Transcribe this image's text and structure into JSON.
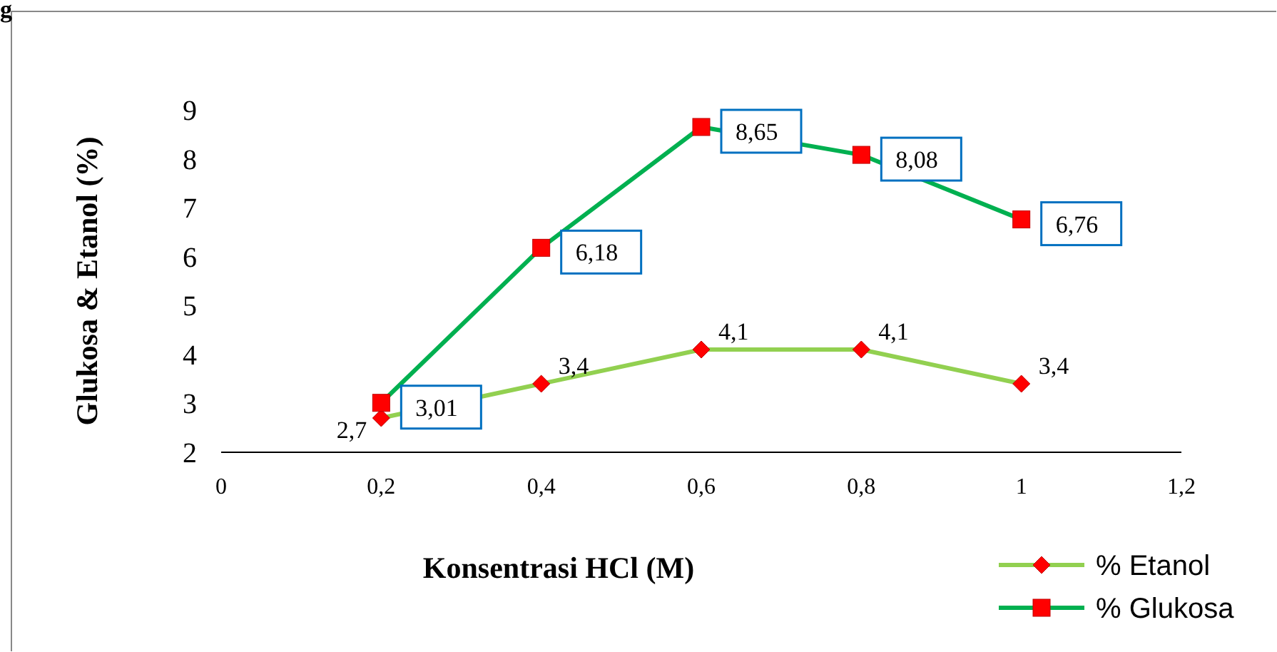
{
  "chart_data": {
    "type": "line",
    "xlabel": "Konsentrasi HCl (M)",
    "ylabel": "Glukosa & Etanol (%)",
    "annotations": [
      "g"
    ],
    "x": [
      0.2,
      0.4,
      0.6,
      0.8,
      1
    ],
    "xlim": [
      0,
      1.2
    ],
    "xticks": [
      0,
      {
        "value": 0.2,
        "label": "0,2"
      },
      {
        "value": 0.4,
        "label": "0,4"
      },
      {
        "value": 0.6,
        "label": "0,6"
      },
      {
        "value": 0.8,
        "label": "0,8"
      },
      1,
      {
        "value": 1.2,
        "label": "1,2"
      }
    ],
    "ylim": [
      2,
      9
    ],
    "yticks": [
      2,
      3,
      4,
      5,
      6,
      7,
      8,
      9
    ],
    "grid": false,
    "legend": "bottom right",
    "series": [
      {
        "name": "% Etanol",
        "color": "#92d050",
        "marker": "diamond",
        "values": [
          2.7,
          3.4,
          4.1,
          4.1,
          3.4
        ],
        "value_labels": [
          "2,7",
          "3,4",
          "4,1",
          "4,1",
          "3,4"
        ]
      },
      {
        "name": "% Glukosa",
        "color": "#00b050",
        "marker": "square",
        "values": [
          3.01,
          6.18,
          8.65,
          8.08,
          6.76
        ],
        "value_labels": [
          "3,01",
          "6,18",
          "8,65",
          "8,08",
          "6,76"
        ]
      }
    ]
  }
}
